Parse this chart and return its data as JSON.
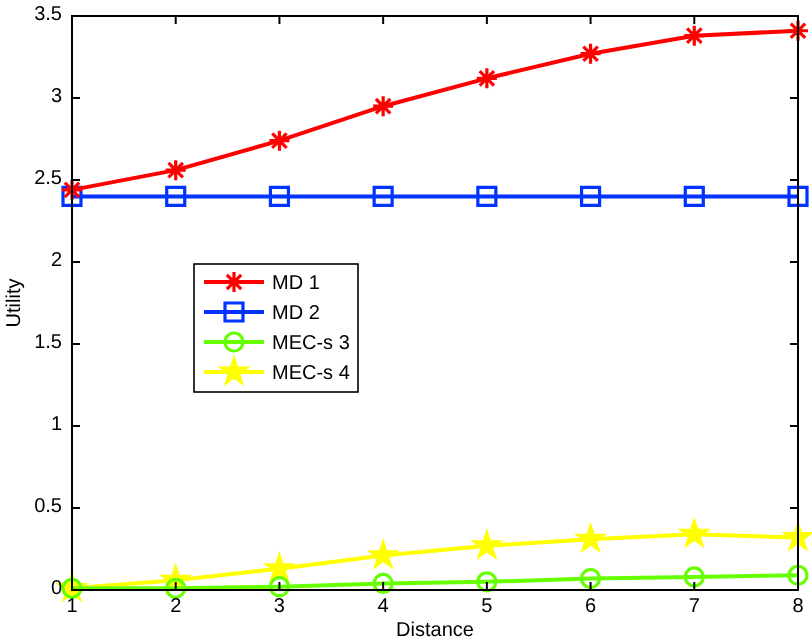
{
  "chart_data": {
    "type": "line",
    "xlabel": "Distance",
    "ylabel": "Utility",
    "x": [
      1,
      2,
      3,
      4,
      5,
      6,
      7,
      8
    ],
    "series": [
      {
        "name": "MD 1",
        "color": "#ff0000",
        "marker": "cross",
        "values": [
          2.44,
          2.56,
          2.74,
          2.95,
          3.12,
          3.27,
          3.38,
          3.41
        ]
      },
      {
        "name": "MD 2",
        "color": "#0033ff",
        "marker": "square",
        "values": [
          2.4,
          2.4,
          2.4,
          2.4,
          2.4,
          2.4,
          2.4,
          2.4
        ]
      },
      {
        "name": "MEC-s 3",
        "color": "#66ff00",
        "marker": "circle",
        "values": [
          0.01,
          0.01,
          0.02,
          0.04,
          0.05,
          0.07,
          0.08,
          0.09
        ]
      },
      {
        "name": "MEC-s 4",
        "color": "#ffff00",
        "marker": "star",
        "values": [
          0.01,
          0.06,
          0.13,
          0.21,
          0.27,
          0.31,
          0.34,
          0.32
        ]
      }
    ],
    "xlim": [
      1,
      8
    ],
    "xticks": [
      1,
      2,
      3,
      4,
      5,
      6,
      7,
      8
    ],
    "ylim": [
      0,
      3.5
    ],
    "yticks": [
      0,
      0.5,
      1,
      1.5,
      2,
      2.5,
      3,
      3.5
    ],
    "legend": "left",
    "grid": false,
    "line_style": "solid"
  }
}
